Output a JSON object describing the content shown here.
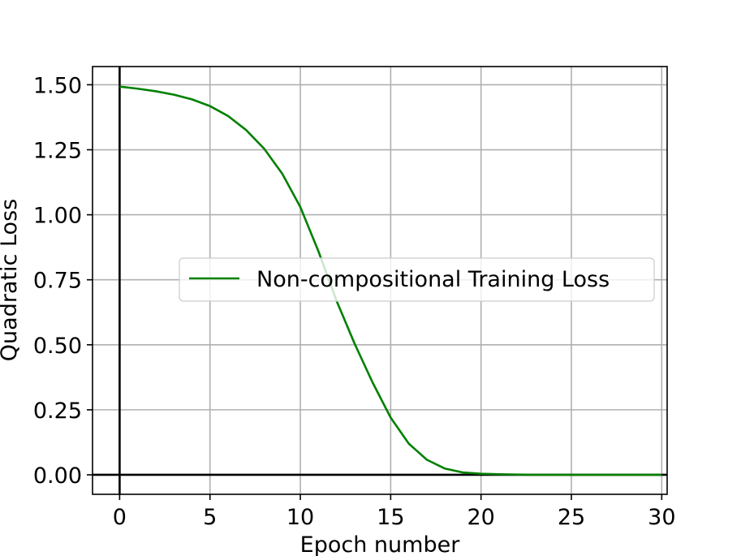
{
  "chart_data": {
    "type": "line",
    "xlabel": "Epoch number",
    "ylabel": "Quadratic Loss",
    "xlim": [
      -1.5,
      30.3
    ],
    "ylim": [
      -0.075,
      1.57
    ],
    "xticks": [
      0,
      5,
      10,
      15,
      20,
      25,
      30
    ],
    "xtick_labels": [
      "0",
      "5",
      "10",
      "15",
      "20",
      "25",
      "30"
    ],
    "yticks": [
      0.0,
      0.25,
      0.5,
      0.75,
      1.0,
      1.25,
      1.5
    ],
    "ytick_labels": [
      "0.00",
      "0.25",
      "0.50",
      "0.75",
      "1.00",
      "1.25",
      "1.50"
    ],
    "grid": true,
    "legend_position": "center-right",
    "reference_lines": {
      "x": 0,
      "y": 0,
      "color": "#000000"
    },
    "series": [
      {
        "name": "Non-compositional Training Loss",
        "color": "#008000",
        "x": [
          0,
          1,
          2,
          3,
          4,
          5,
          6,
          7,
          8,
          9,
          10,
          11,
          12,
          13,
          14,
          15,
          16,
          17,
          18,
          19,
          20,
          21,
          22,
          23,
          24,
          25,
          26,
          27,
          28,
          29,
          30
        ],
        "y": [
          1.493,
          1.485,
          1.475,
          1.462,
          1.444,
          1.418,
          1.38,
          1.326,
          1.254,
          1.158,
          1.03,
          0.86,
          0.67,
          0.505,
          0.355,
          0.22,
          0.12,
          0.058,
          0.024,
          0.009,
          0.004,
          0.002,
          0.001,
          0.0,
          0.0,
          0.0,
          0.0,
          0.0,
          0.0,
          0.0,
          0.0
        ]
      }
    ]
  }
}
